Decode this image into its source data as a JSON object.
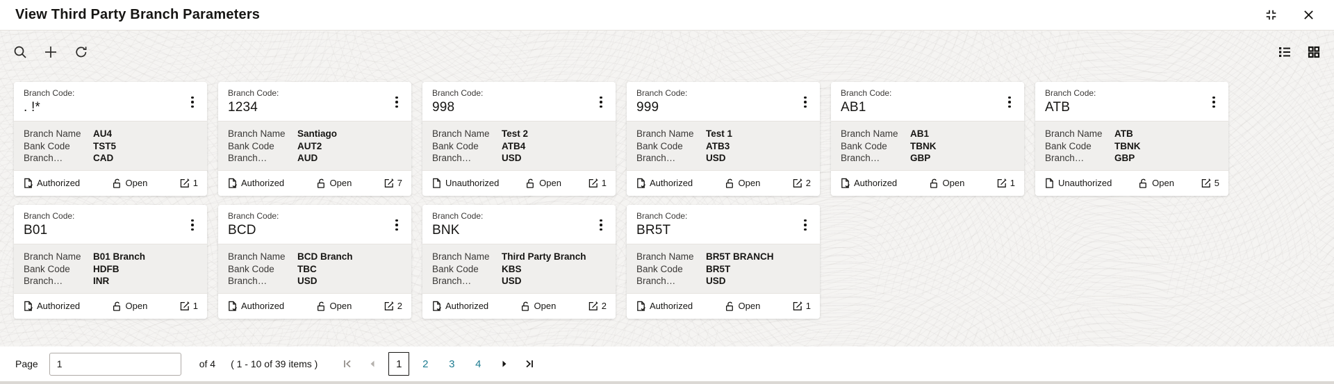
{
  "window": {
    "title": "View Third Party Branch Parameters"
  },
  "toolbar": {
    "left_icons": [
      "search",
      "add",
      "refresh"
    ],
    "right_icons": [
      "list-view",
      "grid-view"
    ]
  },
  "cards": {
    "code_label": "Branch Code:",
    "fields": [
      "Branch Name",
      "Bank Code",
      "Branch…"
    ],
    "items": [
      {
        "code": ". !*",
        "branch_name": "AU4",
        "bank_code": "TST5",
        "branch_extra": "CAD",
        "auth_status": "Authorized",
        "record_status": "Open",
        "mod_count": "1"
      },
      {
        "code": "1234",
        "branch_name": "Santiago",
        "bank_code": "AUT2",
        "branch_extra": "AUD",
        "auth_status": "Authorized",
        "record_status": "Open",
        "mod_count": "7"
      },
      {
        "code": "998",
        "branch_name": "Test 2",
        "bank_code": "ATB4",
        "branch_extra": "USD",
        "auth_status": "Unauthorized",
        "record_status": "Open",
        "mod_count": "1"
      },
      {
        "code": "999",
        "branch_name": "Test 1",
        "bank_code": "ATB3",
        "branch_extra": "USD",
        "auth_status": "Authorized",
        "record_status": "Open",
        "mod_count": "2"
      },
      {
        "code": "AB1",
        "branch_name": "AB1",
        "bank_code": "TBNK",
        "branch_extra": "GBP",
        "auth_status": "Authorized",
        "record_status": "Open",
        "mod_count": "1"
      },
      {
        "code": "ATB",
        "branch_name": "ATB",
        "bank_code": "TBNK",
        "branch_extra": "GBP",
        "auth_status": "Unauthorized",
        "record_status": "Open",
        "mod_count": "5"
      },
      {
        "code": "B01",
        "branch_name": "B01 Branch",
        "bank_code": "HDFB",
        "branch_extra": "INR",
        "auth_status": "Authorized",
        "record_status": "Open",
        "mod_count": "1"
      },
      {
        "code": "BCD",
        "branch_name": "BCD Branch",
        "bank_code": "TBC",
        "branch_extra": "USD",
        "auth_status": "Authorized",
        "record_status": "Open",
        "mod_count": "2"
      },
      {
        "code": "BNK",
        "branch_name": "Third Party Branch",
        "bank_code": "KBS",
        "branch_extra": "USD",
        "auth_status": "Authorized",
        "record_status": "Open",
        "mod_count": "2"
      },
      {
        "code": "BR5T",
        "branch_name": "BR5T BRANCH",
        "bank_code": "BR5T",
        "branch_extra": "USD",
        "auth_status": "Authorized",
        "record_status": "Open",
        "mod_count": "1"
      }
    ]
  },
  "pagination": {
    "page_label": "Page",
    "page_input_value": "1",
    "of_label": "of 4",
    "items_summary": "( 1 - 10 of 39 items )",
    "pages": [
      "1",
      "2",
      "3",
      "4"
    ],
    "current_page": "1"
  },
  "colors": {
    "accent_teal": "#1e7c91",
    "text_primary": "#161513",
    "card_body_bg": "#f0efed",
    "disabled_gray": "#948f8a"
  }
}
